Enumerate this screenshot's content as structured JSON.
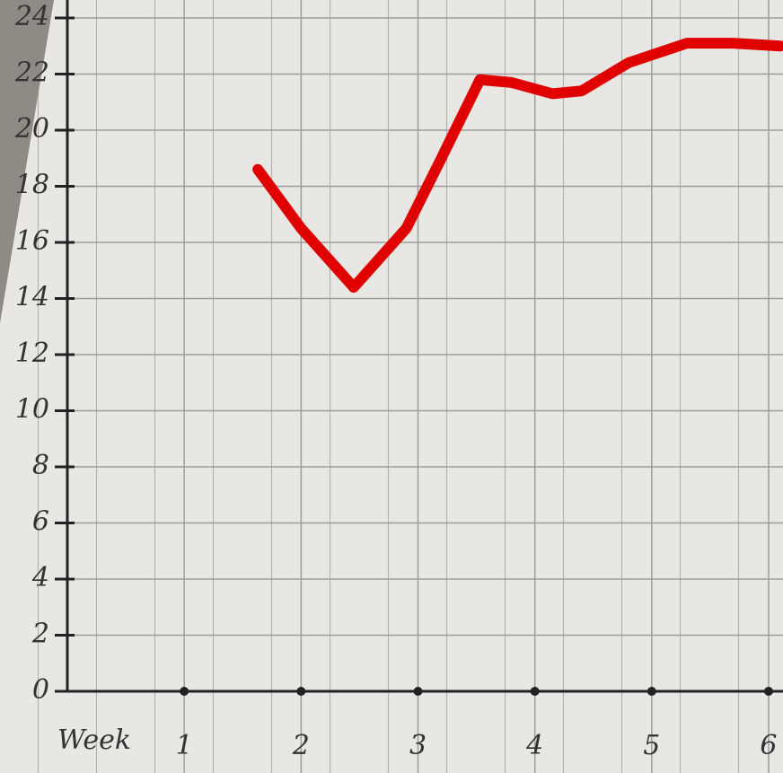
{
  "chart_data": {
    "type": "line",
    "xlabel": "Week",
    "x": [
      1.63,
      2.0,
      2.45,
      2.9,
      3.2,
      3.53,
      3.8,
      4.15,
      4.4,
      4.8,
      5.3,
      5.7,
      6.1
    ],
    "series": [
      {
        "color": "#e00000",
        "values": [
          18.6,
          16.5,
          14.4,
          16.5,
          19.0,
          21.8,
          21.7,
          21.3,
          21.4,
          22.4,
          23.1,
          23.1,
          23.0
        ]
      }
    ],
    "xlim": [
      0,
      6.1
    ],
    "xticks": [
      1,
      2,
      3,
      4,
      5,
      6
    ],
    "ylim": [
      0,
      24
    ],
    "yticks": [
      0,
      2,
      4,
      6,
      8,
      10,
      12,
      14,
      16,
      18,
      20,
      22,
      24
    ],
    "grid": true
  }
}
